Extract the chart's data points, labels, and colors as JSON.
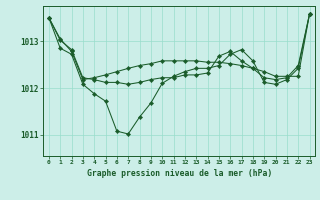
{
  "title": "Graphe pression niveau de la mer (hPa)",
  "bg_color": "#cceee8",
  "grid_color": "#99ddcc",
  "line_color": "#1a5c2a",
  "xlim": [
    -0.5,
    23.5
  ],
  "ylim": [
    1010.55,
    1013.75
  ],
  "yticks": [
    1011,
    1012,
    1013
  ],
  "xticks": [
    0,
    1,
    2,
    3,
    4,
    5,
    6,
    7,
    8,
    9,
    10,
    11,
    12,
    13,
    14,
    15,
    16,
    17,
    18,
    19,
    20,
    21,
    22,
    23
  ],
  "series1": [
    1013.5,
    1012.85,
    1012.72,
    1012.08,
    1011.88,
    1011.72,
    1011.08,
    1011.02,
    1011.38,
    1011.68,
    1012.1,
    1012.25,
    1012.35,
    1012.42,
    1012.42,
    1012.48,
    1012.72,
    1012.82,
    1012.58,
    1012.12,
    1012.08,
    1012.18,
    1012.42,
    1013.58
  ],
  "series2": [
    1013.5,
    1013.05,
    1012.78,
    1012.18,
    1012.22,
    1012.28,
    1012.35,
    1012.42,
    1012.48,
    1012.52,
    1012.58,
    1012.58,
    1012.58,
    1012.58,
    1012.55,
    1012.55,
    1012.52,
    1012.48,
    1012.42,
    1012.35,
    1012.25,
    1012.25,
    1012.25,
    1013.58
  ],
  "series3": [
    1013.5,
    1013.02,
    1012.82,
    1012.22,
    1012.18,
    1012.12,
    1012.12,
    1012.08,
    1012.12,
    1012.18,
    1012.22,
    1012.22,
    1012.28,
    1012.28,
    1012.32,
    1012.68,
    1012.78,
    1012.58,
    1012.42,
    1012.22,
    1012.18,
    1012.22,
    1012.48,
    1013.58
  ]
}
